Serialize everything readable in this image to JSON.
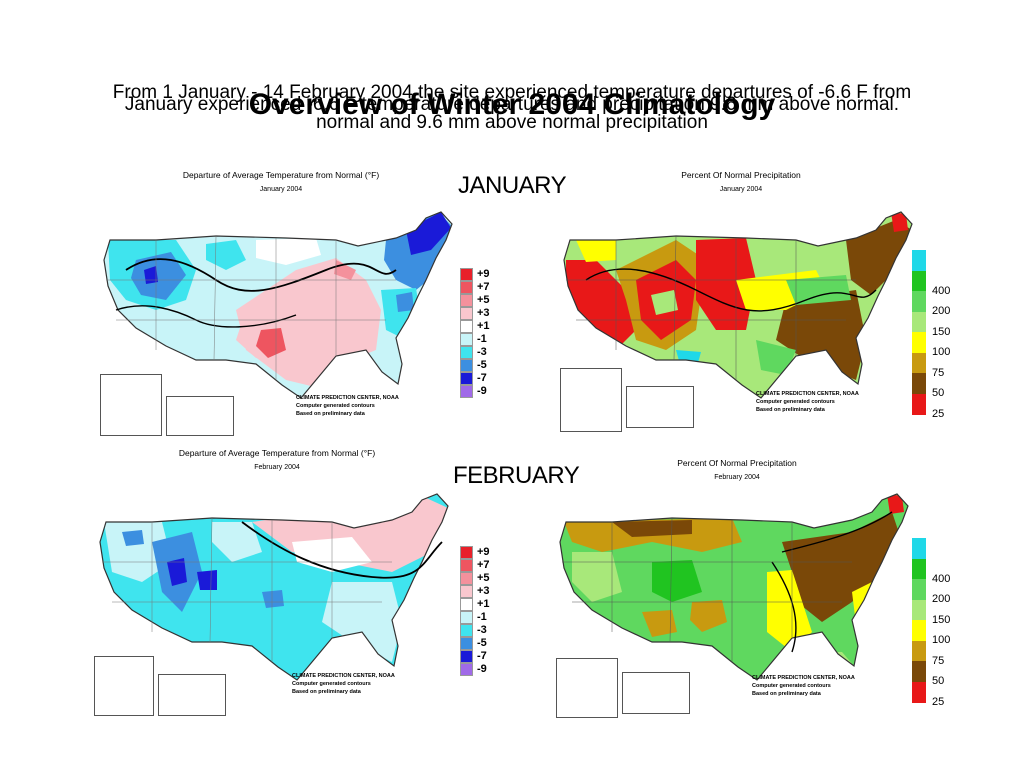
{
  "slide": {
    "title": "Overview of Winter 2004 Climatology",
    "line_a": "January experienced -6.6 F temperature departures and precipitation 9.6 mm above normal.",
    "line_b": "From 1 January - 14 February 2004 the site experienced temperature departures of -6.6 F from",
    "line_c": "normal and 9.6 mm above normal precipitation",
    "month_jan": "JANUARY",
    "month_feb": "FEBRUARY"
  },
  "maps": {
    "jan_temp": {
      "title": "Departure of Average Temperature from Normal (°F)",
      "subtitle": "January 2004",
      "credit": [
        "CLIMATE PREDICTION CENTER, NOAA",
        "Computer generated contours",
        "Based on preliminary data"
      ]
    },
    "jan_precip": {
      "title": "Percent Of Normal Precipitation",
      "subtitle": "January 2004",
      "credit": [
        "CLIMATE PREDICTION CENTER, NOAA",
        "Computer generated contours",
        "Based on preliminary data"
      ]
    },
    "feb_temp": {
      "title": "Departure of Average Temperature from Normal (°F)",
      "subtitle": "February 2004",
      "credit": [
        "CLIMATE PREDICTION CENTER, NOAA",
        "Computer generated contours",
        "Based on preliminary data"
      ]
    },
    "feb_precip": {
      "title": "Percent Of Normal Precipitation",
      "subtitle": "February 2004",
      "credit": [
        "CLIMATE PREDICTION CENTER, NOAA",
        "Computer generated contours",
        "Based on preliminary data"
      ]
    }
  },
  "temp_legend": [
    {
      "label": "+9",
      "color": "#e8202a"
    },
    {
      "label": "+7",
      "color": "#ee5560"
    },
    {
      "label": "+5",
      "color": "#f4919c"
    },
    {
      "label": "+3",
      "color": "#f9c7ce"
    },
    {
      "label": "+1",
      "color": "#ffffff"
    },
    {
      "label": "-1",
      "color": "#c8f4f8"
    },
    {
      "label": "-3",
      "color": "#3fe4ee"
    },
    {
      "label": "-5",
      "color": "#3c8fe0"
    },
    {
      "label": "-7",
      "color": "#1a1ad8"
    },
    {
      "label": "-9",
      "color": "#a06ae8"
    }
  ],
  "precip_legend": [
    {
      "label": "",
      "color": "#1fd8e8"
    },
    {
      "label": "400",
      "color": "#20c420"
    },
    {
      "label": "200",
      "color": "#5fd85f"
    },
    {
      "label": "150",
      "color": "#a8e87a"
    },
    {
      "label": "100",
      "color": "#ffff00"
    },
    {
      "label": "75",
      "color": "#c89a10"
    },
    {
      "label": "50",
      "color": "#7a4808"
    },
    {
      "label": "25",
      "color": "#e81818"
    }
  ]
}
